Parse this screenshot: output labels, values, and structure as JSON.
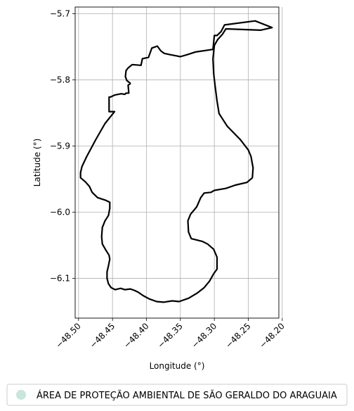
{
  "chart_data": {
    "type": "map",
    "xlabel": "Longitude (°)",
    "ylabel": "Latitude (°)",
    "xlim": [
      -48.505,
      -48.205
    ],
    "ylim": [
      -6.16,
      -5.69
    ],
    "x_ticks": [
      -48.5,
      -48.45,
      -48.4,
      -48.35,
      -48.3,
      -48.25,
      -48.2
    ],
    "x_tick_labels": [
      "−48.50",
      "−48.45",
      "−48.40",
      "−48.35",
      "−48.30",
      "−48.25",
      "−48.20"
    ],
    "y_ticks": [
      -5.7,
      -5.8,
      -5.9,
      -6.0,
      -6.1
    ],
    "y_tick_labels": [
      "−5.7",
      "−5.8",
      "−5.9",
      "−6.0",
      "−6.1"
    ],
    "grid": true,
    "legend_position": "bottom",
    "series": [
      {
        "name": "ÁREA DE PROTEÇÃO AMBIENTAL DE SÃO GERALDO DO ARAGUAIA",
        "outline_color": "#000000",
        "legend_color": "#c8e6dc",
        "boundary": [
          [
            -48.3,
            -5.733
          ],
          [
            -48.296,
            -5.733
          ],
          [
            -48.29,
            -5.727
          ],
          [
            -48.285,
            -5.717
          ],
          [
            -48.24,
            -5.711
          ],
          [
            -48.215,
            -5.721
          ],
          [
            -48.232,
            -5.725
          ],
          [
            -48.283,
            -5.723
          ],
          [
            -48.288,
            -5.731
          ],
          [
            -48.295,
            -5.739
          ],
          [
            -48.3,
            -5.748
          ],
          [
            -48.302,
            -5.768
          ],
          [
            -48.301,
            -5.79
          ],
          [
            -48.299,
            -5.808
          ],
          [
            -48.296,
            -5.832
          ],
          [
            -48.293,
            -5.851
          ],
          [
            -48.281,
            -5.87
          ],
          [
            -48.262,
            -5.89
          ],
          [
            -48.25,
            -5.906
          ],
          [
            -48.246,
            -5.916
          ],
          [
            -48.243,
            -5.933
          ],
          [
            -48.244,
            -5.948
          ],
          [
            -48.252,
            -5.955
          ],
          [
            -48.269,
            -5.959
          ],
          [
            -48.283,
            -5.964
          ],
          [
            -48.3,
            -5.967
          ],
          [
            -48.305,
            -5.97
          ],
          [
            -48.315,
            -5.971
          ],
          [
            -48.32,
            -5.978
          ],
          [
            -48.326,
            -5.992
          ],
          [
            -48.335,
            -6.003
          ],
          [
            -48.339,
            -6.013
          ],
          [
            -48.338,
            -6.03
          ],
          [
            -48.334,
            -6.04
          ],
          [
            -48.318,
            -6.044
          ],
          [
            -48.31,
            -6.048
          ],
          [
            -48.301,
            -6.056
          ],
          [
            -48.296,
            -6.068
          ],
          [
            -48.296,
            -6.086
          ],
          [
            -48.301,
            -6.093
          ],
          [
            -48.307,
            -6.104
          ],
          [
            -48.315,
            -6.114
          ],
          [
            -48.325,
            -6.122
          ],
          [
            -48.338,
            -6.13
          ],
          [
            -48.352,
            -6.135
          ],
          [
            -48.362,
            -6.134
          ],
          [
            -48.375,
            -6.136
          ],
          [
            -48.385,
            -6.135
          ],
          [
            -48.396,
            -6.131
          ],
          [
            -48.405,
            -6.126
          ],
          [
            -48.412,
            -6.121
          ],
          [
            -48.418,
            -6.118
          ],
          [
            -48.424,
            -6.116
          ],
          [
            -48.432,
            -6.117
          ],
          [
            -48.438,
            -6.115
          ],
          [
            -48.446,
            -6.117
          ],
          [
            -48.452,
            -6.114
          ],
          [
            -48.456,
            -6.108
          ],
          [
            -48.458,
            -6.1
          ],
          [
            -48.458,
            -6.09
          ],
          [
            -48.456,
            -6.081
          ],
          [
            -48.454,
            -6.071
          ],
          [
            -48.455,
            -6.065
          ],
          [
            -48.46,
            -6.057
          ],
          [
            -48.465,
            -6.048
          ],
          [
            -48.466,
            -6.037
          ],
          [
            -48.465,
            -6.023
          ],
          [
            -48.461,
            -6.013
          ],
          [
            -48.456,
            -6.005
          ],
          [
            -48.454,
            -5.994
          ],
          [
            -48.454,
            -5.985
          ],
          [
            -48.46,
            -5.982
          ],
          [
            -48.472,
            -5.978
          ],
          [
            -48.48,
            -5.97
          ],
          [
            -48.484,
            -5.961
          ],
          [
            -48.49,
            -5.954
          ],
          [
            -48.497,
            -5.948
          ],
          [
            -48.497,
            -5.94
          ],
          [
            -48.495,
            -5.931
          ],
          [
            -48.488,
            -5.916
          ],
          [
            -48.475,
            -5.891
          ],
          [
            -48.461,
            -5.866
          ],
          [
            -48.447,
            -5.848
          ],
          [
            -48.453,
            -5.848
          ],
          [
            -48.455,
            -5.848
          ],
          [
            -48.455,
            -5.826
          ],
          [
            -48.453,
            -5.826
          ],
          [
            -48.447,
            -5.823
          ],
          [
            -48.437,
            -5.821
          ],
          [
            -48.432,
            -5.822
          ],
          [
            -48.43,
            -5.82
          ],
          [
            -48.426,
            -5.82
          ],
          [
            -48.427,
            -5.808
          ],
          [
            -48.424,
            -5.806
          ],
          [
            -48.424,
            -5.805
          ],
          [
            -48.429,
            -5.801
          ],
          [
            -48.431,
            -5.795
          ],
          [
            -48.43,
            -5.786
          ],
          [
            -48.427,
            -5.782
          ],
          [
            -48.421,
            -5.777
          ],
          [
            -48.408,
            -5.778
          ],
          [
            -48.406,
            -5.768
          ],
          [
            -48.397,
            -5.766
          ],
          [
            -48.392,
            -5.752
          ],
          [
            -48.384,
            -5.749
          ],
          [
            -48.379,
            -5.756
          ],
          [
            -48.374,
            -5.76
          ],
          [
            -48.365,
            -5.762
          ],
          [
            -48.35,
            -5.765
          ],
          [
            -48.34,
            -5.762
          ],
          [
            -48.328,
            -5.758
          ],
          [
            -48.302,
            -5.754
          ],
          [
            -48.3,
            -5.733
          ]
        ]
      }
    ]
  }
}
